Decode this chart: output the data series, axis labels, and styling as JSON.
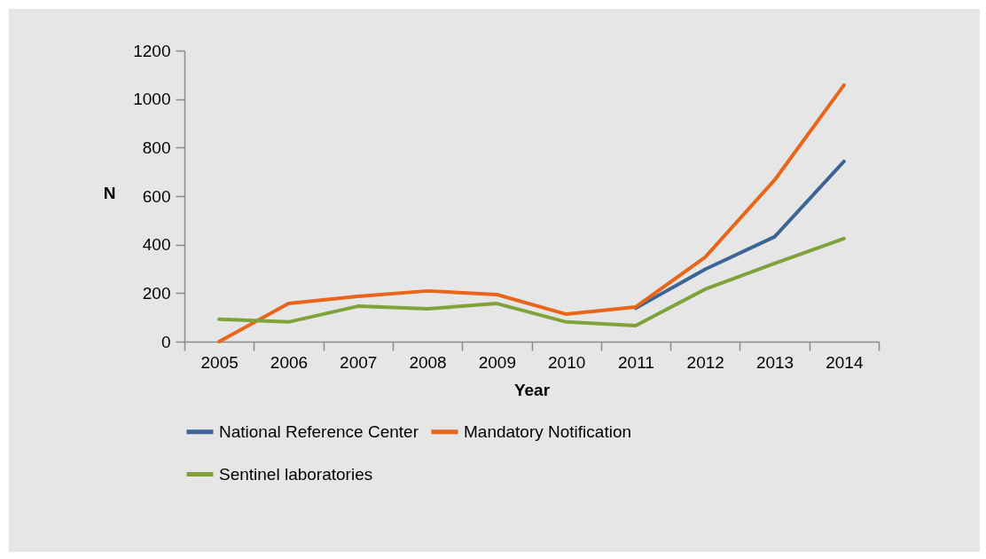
{
  "chart_data": {
    "type": "line",
    "xlabel": "Year",
    "ylabel": "N",
    "categories": [
      "2005",
      "2006",
      "2007",
      "2008",
      "2009",
      "2010",
      "2011",
      "2012",
      "2013",
      "2014"
    ],
    "series": [
      {
        "name": "National Reference Center",
        "color": "#3a6595",
        "values": [
          null,
          null,
          null,
          null,
          null,
          null,
          138,
          298,
          432,
          743
        ]
      },
      {
        "name": "Mandatory Notification",
        "color": "#e8651a",
        "values": [
          0,
          157,
          187,
          209,
          194,
          113,
          143,
          348,
          666,
          1058
        ]
      },
      {
        "name": "Sentinel laboratories",
        "color": "#7fa23a",
        "values": [
          92,
          81,
          146,
          135,
          157,
          81,
          66,
          216,
          322,
          425
        ]
      }
    ],
    "ylim": [
      0,
      1200
    ],
    "yticks": [
      0,
      200,
      400,
      600,
      800,
      1000,
      1200
    ],
    "grid": false,
    "legend": "bottom",
    "marker": "none",
    "line_style": "solid"
  }
}
